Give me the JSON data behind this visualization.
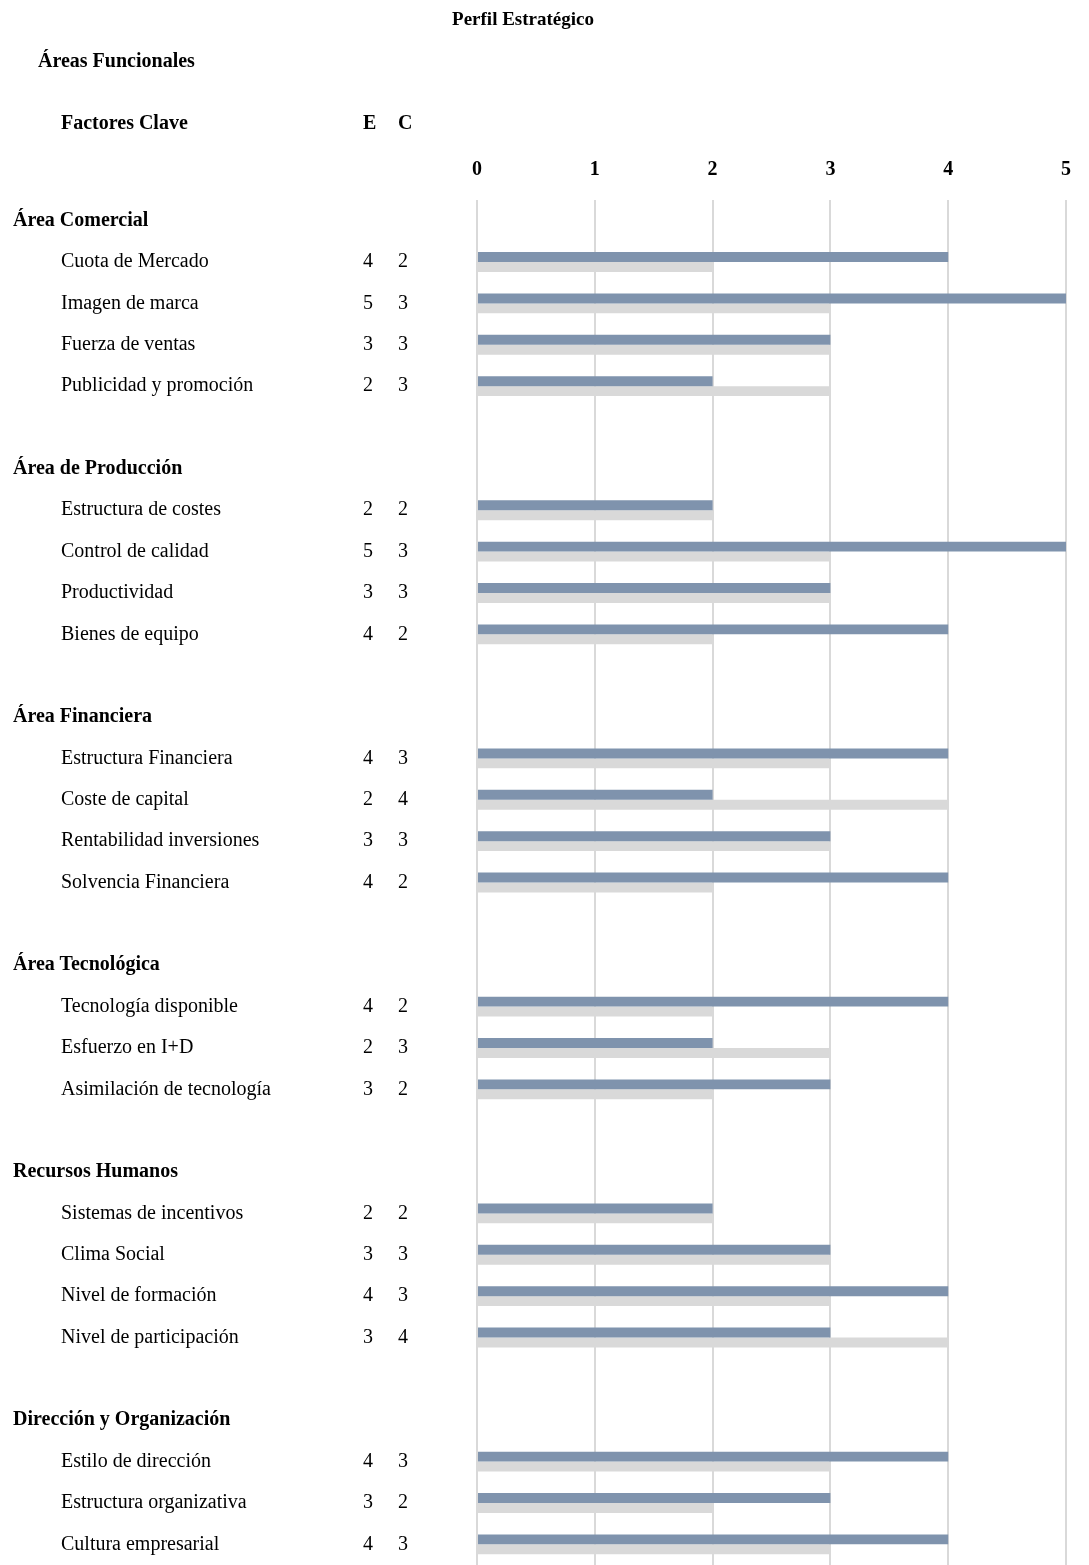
{
  "chart_data": {
    "type": "bar",
    "orientation": "horizontal",
    "title": "Perfil Estratégico",
    "subtitle": "Áreas Funcionales",
    "ylabel": "Factores Clave",
    "annotations": [
      "Área Comercial",
      "Área de Producción",
      "Área Financiera",
      "Área Tecnológica",
      "Recursos Humanos",
      "Dirección y Organización",
      "E",
      "C"
    ],
    "categories": [
      null,
      "Cuota de Mercado",
      "Imagen de marca",
      "Fuerza de ventas",
      "Publicidad y promoción",
      null,
      null,
      "Estructura de costes",
      "Control de calidad",
      "Productividad",
      "Bienes de equipo",
      null,
      null,
      "Estructura Financiera",
      "Coste de capital",
      "Rentabilidad inversiones",
      "Solvencia Financiera",
      null,
      null,
      "Tecnología disponible",
      "Esfuerzo en I+D",
      "Asimilación de tecnología",
      null,
      null,
      "Sistemas de incentivos",
      "Clima Social",
      "Nivel de formación",
      "Nivel de participación",
      null,
      null,
      "Estilo de dirección",
      "Estructura organizativa",
      "Cultura empresarial"
    ],
    "series": [
      {
        "color": "#7f93ad",
        "values": [
          null,
          4,
          5,
          3,
          2,
          null,
          null,
          2,
          5,
          3,
          4,
          null,
          null,
          4,
          2,
          3,
          4,
          null,
          null,
          4,
          2,
          3,
          null,
          null,
          2,
          3,
          4,
          3,
          null,
          null,
          4,
          3,
          4
        ]
      },
      {
        "color": "#d9d9d9",
        "values": [
          null,
          2,
          3,
          3,
          3,
          null,
          null,
          2,
          3,
          3,
          2,
          null,
          null,
          3,
          4,
          3,
          2,
          null,
          null,
          2,
          3,
          2,
          null,
          null,
          2,
          3,
          3,
          4,
          null,
          null,
          3,
          2,
          3
        ]
      }
    ],
    "x2lim": [
      0,
      5
    ],
    "x2ticks": [
      0,
      1,
      2,
      3,
      4,
      5
    ],
    "grid": "x",
    "legend": false,
    "data_labels": true
  }
}
